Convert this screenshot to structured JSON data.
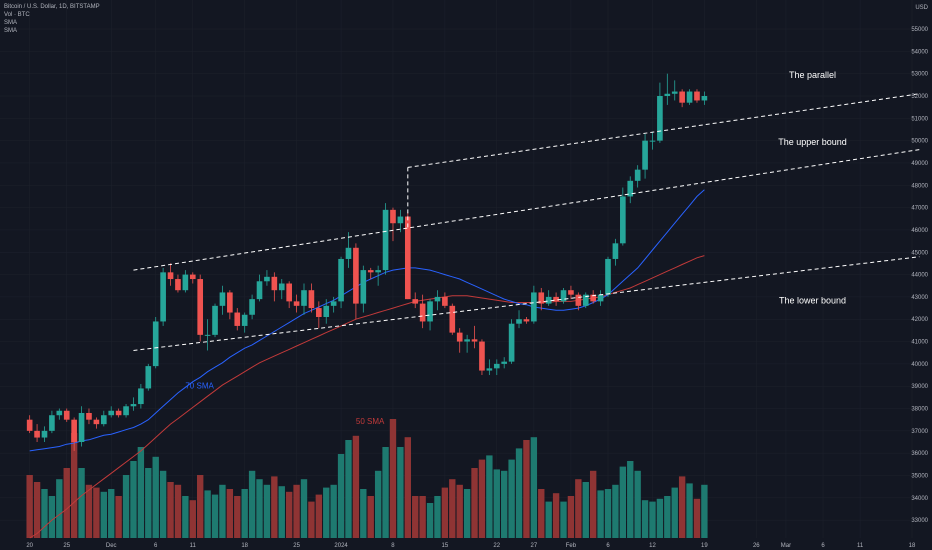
{
  "legend": {
    "symbol": "Bitcoin / U.S. Dollar, 1D, BITSTAMP",
    "vol": "Vol · BTC",
    "sma1": "SMA",
    "sma2": "SMA"
  },
  "currency": "USD",
  "colors": {
    "background": "#131722",
    "up": "#26a69a",
    "down": "#ef5350",
    "up_volume": "#1e7a70",
    "down_volume": "#8f3434",
    "sma_fast": "#2962ff",
    "sma_slow": "#c23a3a",
    "annotation_line": "#ffffff",
    "grid": "#1e222d"
  },
  "chart_data": {
    "type": "candlestick",
    "title": "Bitcoin / U.S. Dollar, 1D, BITSTAMP",
    "yaxis": {
      "ylim": [
        32200,
        56300
      ],
      "ticks": [
        33000,
        34000,
        35000,
        36000,
        37000,
        38000,
        39000,
        40000,
        41000,
        42000,
        43000,
        44000,
        45000,
        46000,
        47000,
        48000,
        49000,
        50000,
        51000,
        52000,
        53000,
        54000,
        55000
      ],
      "currency_label": "USD"
    },
    "xaxis": {
      "ticks": [
        {
          "label": "20",
          "day": 0
        },
        {
          "label": "25",
          "day": 5
        },
        {
          "label": "Dec",
          "day": 11
        },
        {
          "label": "6",
          "day": 17
        },
        {
          "label": "11",
          "day": 22
        },
        {
          "label": "18",
          "day": 29
        },
        {
          "label": "25",
          "day": 36
        },
        {
          "label": "2024",
          "day": 42
        },
        {
          "label": "8",
          "day": 49
        },
        {
          "label": "15",
          "day": 56
        },
        {
          "label": "22",
          "day": 63
        },
        {
          "label": "27",
          "day": 68
        },
        {
          "label": "Feb",
          "day": 73
        },
        {
          "label": "6",
          "day": 78
        },
        {
          "label": "12",
          "day": 84
        },
        {
          "label": "19",
          "day": 91
        },
        {
          "label": "26",
          "day": 98
        },
        {
          "label": "Mar",
          "day": 102
        },
        {
          "label": "6",
          "day": 107
        },
        {
          "label": "11",
          "day": 112
        },
        {
          "label": "18",
          "day": 119
        }
      ],
      "start_day": -4,
      "end_day": 119
    },
    "candles": [
      [
        37500,
        37700,
        36900,
        37000
      ],
      [
        37000,
        37300,
        36500,
        36700
      ],
      [
        36700,
        37200,
        36500,
        37000
      ],
      [
        37000,
        37900,
        36900,
        37700
      ],
      [
        37700,
        38000,
        37500,
        37900
      ],
      [
        37900,
        38000,
        37400,
        37500
      ],
      [
        37500,
        37600,
        36100,
        36500
      ],
      [
        36500,
        38100,
        36300,
        37800
      ],
      [
        37800,
        38000,
        37300,
        37500
      ],
      [
        37500,
        37600,
        37100,
        37300
      ],
      [
        37300,
        37900,
        37200,
        37700
      ],
      [
        37700,
        38100,
        37600,
        37900
      ],
      [
        37900,
        38000,
        37600,
        37700
      ],
      [
        37700,
        38200,
        37600,
        38100
      ],
      [
        38100,
        38500,
        37900,
        38200
      ],
      [
        38200,
        39100,
        38000,
        38900
      ],
      [
        38900,
        40000,
        38800,
        39900
      ],
      [
        39900,
        42100,
        39800,
        41900
      ],
      [
        41900,
        44300,
        41700,
        44100
      ],
      [
        44100,
        44500,
        43500,
        43800
      ],
      [
        43800,
        44000,
        43200,
        43300
      ],
      [
        43300,
        44200,
        43200,
        44000
      ],
      [
        44000,
        44100,
        43600,
        43800
      ],
      [
        43800,
        44000,
        41000,
        41300
      ],
      [
        41300,
        42000,
        40600,
        41300
      ],
      [
        41300,
        42700,
        41200,
        42600
      ],
      [
        42600,
        43500,
        42200,
        43200
      ],
      [
        43200,
        43300,
        42000,
        42300
      ],
      [
        42300,
        42500,
        41500,
        41700
      ],
      [
        41700,
        42300,
        41400,
        42200
      ],
      [
        42200,
        43100,
        42000,
        42900
      ],
      [
        42900,
        44000,
        42800,
        43700
      ],
      [
        43700,
        44200,
        43500,
        43900
      ],
      [
        43900,
        44100,
        42800,
        43300
      ],
      [
        43300,
        43800,
        42900,
        43600
      ],
      [
        43600,
        43700,
        42500,
        42800
      ],
      [
        42800,
        43100,
        42300,
        42600
      ],
      [
        42600,
        43600,
        42200,
        43300
      ],
      [
        43300,
        43600,
        42300,
        42500
      ],
      [
        42500,
        42800,
        41600,
        42100
      ],
      [
        42100,
        42900,
        41800,
        42600
      ],
      [
        42600,
        43000,
        42300,
        42800
      ],
      [
        42800,
        44800,
        42500,
        44700
      ],
      [
        44700,
        45900,
        44300,
        45200
      ],
      [
        45200,
        45400,
        42000,
        42700
      ],
      [
        42700,
        44400,
        42300,
        44200
      ],
      [
        44200,
        44300,
        43800,
        44100
      ],
      [
        44100,
        44400,
        43500,
        44200
      ],
      [
        44200,
        47200,
        44000,
        46900
      ],
      [
        46900,
        47000,
        45500,
        46300
      ],
      [
        46300,
        46900,
        45900,
        46600
      ],
      [
        46600,
        46800,
        42900,
        42900
      ],
      [
        42900,
        43200,
        42500,
        42700
      ],
      [
        42700,
        43100,
        41600,
        41900
      ],
      [
        41900,
        42900,
        41500,
        42800
      ],
      [
        42800,
        43300,
        42400,
        43000
      ],
      [
        43000,
        43200,
        42500,
        42600
      ],
      [
        42600,
        42700,
        41300,
        41400
      ],
      [
        41400,
        41600,
        40500,
        41000
      ],
      [
        41000,
        41300,
        40500,
        41100
      ],
      [
        41100,
        41700,
        40700,
        41000
      ],
      [
        41000,
        41100,
        39500,
        39700
      ],
      [
        39700,
        40200,
        39500,
        39800
      ],
      [
        39800,
        40200,
        39500,
        40000
      ],
      [
        40000,
        40300,
        39800,
        40100
      ],
      [
        40100,
        42000,
        40000,
        41800
      ],
      [
        41800,
        42400,
        41600,
        42000
      ],
      [
        42000,
        42100,
        41800,
        41900
      ],
      [
        41900,
        43500,
        41800,
        43200
      ],
      [
        43200,
        43400,
        42400,
        42700
      ],
      [
        42700,
        43300,
        42600,
        43000
      ],
      [
        43000,
        43200,
        42600,
        42800
      ],
      [
        42800,
        43400,
        42700,
        43300
      ],
      [
        43300,
        43500,
        42900,
        43100
      ],
      [
        43100,
        43200,
        42400,
        42600
      ],
      [
        42600,
        43200,
        42500,
        43100
      ],
      [
        43100,
        43300,
        42700,
        42800
      ],
      [
        42800,
        43300,
        42600,
        43100
      ],
      [
        43100,
        44800,
        43000,
        44700
      ],
      [
        44700,
        45600,
        44400,
        45400
      ],
      [
        45400,
        47900,
        45300,
        47500
      ],
      [
        47500,
        48400,
        47200,
        48200
      ],
      [
        48200,
        48900,
        47900,
        48700
      ],
      [
        48700,
        50300,
        48300,
        50000
      ],
      [
        50000,
        50400,
        49600,
        50000
      ],
      [
        50000,
        52600,
        49900,
        52000
      ],
      [
        52000,
        53000,
        51600,
        52100
      ],
      [
        52100,
        52700,
        51800,
        52200
      ],
      [
        52200,
        52300,
        51500,
        51700
      ],
      [
        51700,
        52300,
        51600,
        52200
      ],
      [
        52200,
        52300,
        51700,
        51800
      ],
      [
        51800,
        52200,
        51600,
        52000
      ]
    ],
    "volume_relative": [
      0.45,
      0.4,
      0.35,
      0.3,
      0.42,
      0.5,
      0.75,
      0.5,
      0.38,
      0.36,
      0.33,
      0.35,
      0.3,
      0.45,
      0.55,
      0.65,
      0.5,
      0.58,
      0.48,
      0.4,
      0.38,
      0.3,
      0.27,
      0.45,
      0.34,
      0.31,
      0.38,
      0.35,
      0.3,
      0.35,
      0.48,
      0.42,
      0.38,
      0.44,
      0.37,
      0.33,
      0.38,
      0.42,
      0.26,
      0.31,
      0.36,
      0.38,
      0.6,
      0.7,
      0.73,
      0.35,
      0.3,
      0.48,
      0.65,
      0.85,
      0.65,
      0.72,
      0.3,
      0.3,
      0.25,
      0.3,
      0.36,
      0.42,
      0.38,
      0.35,
      0.5,
      0.56,
      0.59,
      0.49,
      0.48,
      0.56,
      0.64,
      0.7,
      0.72,
      0.35,
      0.26,
      0.32,
      0.26,
      0.3,
      0.42,
      0.4,
      0.48,
      0.34,
      0.35,
      0.38,
      0.51,
      0.55,
      0.48,
      0.27,
      0.26,
      0.28,
      0.3,
      0.36,
      0.44,
      0.39,
      0.28,
      0.38
    ],
    "sma_70": [
      36100,
      36150,
      36200,
      36250,
      36300,
      36400,
      36450,
      36550,
      36600,
      36700,
      36800,
      36850,
      36950,
      37050,
      37150,
      37300,
      37500,
      37800,
      38100,
      38400,
      38700,
      38950,
      39200,
      39400,
      39650,
      39850,
      40050,
      40300,
      40500,
      40700,
      40850,
      41050,
      41250,
      41450,
      41650,
      41850,
      42050,
      42250,
      42400,
      42550,
      42700,
      42850,
      43050,
      43250,
      43450,
      43650,
      43800,
      43950,
      44100,
      44200,
      44250,
      44300,
      44300,
      44250,
      44200,
      44100,
      44000,
      43900,
      43800,
      43650,
      43500,
      43350,
      43200,
      43050,
      42900,
      42800,
      42700,
      42650,
      42550,
      42500,
      42450,
      42400,
      42400,
      42450,
      42500,
      42600,
      42750,
      42900,
      43100,
      43400,
      43700,
      44000,
      44300,
      44700,
      45100,
      45500,
      45900,
      46300,
      46700,
      47100,
      47500,
      47800
    ],
    "sma_50": [
      32200,
      32400,
      32700,
      33000,
      33250,
      33500,
      33800,
      34100,
      34350,
      34600,
      34850,
      35100,
      35350,
      35600,
      35850,
      36100,
      36400,
      36700,
      37000,
      37300,
      37550,
      37800,
      38050,
      38300,
      38550,
      38800,
      39050,
      39250,
      39450,
      39650,
      39850,
      40050,
      40200,
      40350,
      40500,
      40650,
      40800,
      40950,
      41100,
      41250,
      41400,
      41550,
      41700,
      41850,
      42000,
      42100,
      42200,
      42300,
      42400,
      42500,
      42600,
      42700,
      42800,
      42850,
      42900,
      42950,
      43000,
      43050,
      43050,
      43050,
      43000,
      42950,
      42900,
      42850,
      42800,
      42750,
      42750,
      42750,
      42750,
      42750,
      42750,
      42800,
      42800,
      42800,
      42850,
      42900,
      42950,
      43000,
      43100,
      43200,
      43300,
      43400,
      43550,
      43700,
      43850,
      44000,
      44150,
      44300,
      44450,
      44600,
      44750,
      44850
    ],
    "series_labels": [
      {
        "name": "70 SMA",
        "day": -3,
        "y": 38900
      },
      {
        "name": "50 SMA",
        "day": -6,
        "y": 37300
      }
    ],
    "channel_lines": [
      {
        "name": "lower-bound-line",
        "points": [
          [
            14,
            40600
          ],
          [
            120,
            44800
          ]
        ]
      },
      {
        "name": "upper-bound-line",
        "points": [
          [
            14,
            44200
          ],
          [
            120,
            49600
          ]
        ]
      },
      {
        "name": "parallel-line",
        "points": [
          [
            51,
            48800
          ],
          [
            120,
            52100
          ]
        ]
      }
    ],
    "annotations": [
      {
        "text": "The parallel",
        "day": 101,
        "y": 52800
      },
      {
        "text": "The upper bound",
        "day": 101,
        "y": 49800
      },
      {
        "text": "The lower bound",
        "day": 101,
        "y": 42700
      }
    ]
  }
}
